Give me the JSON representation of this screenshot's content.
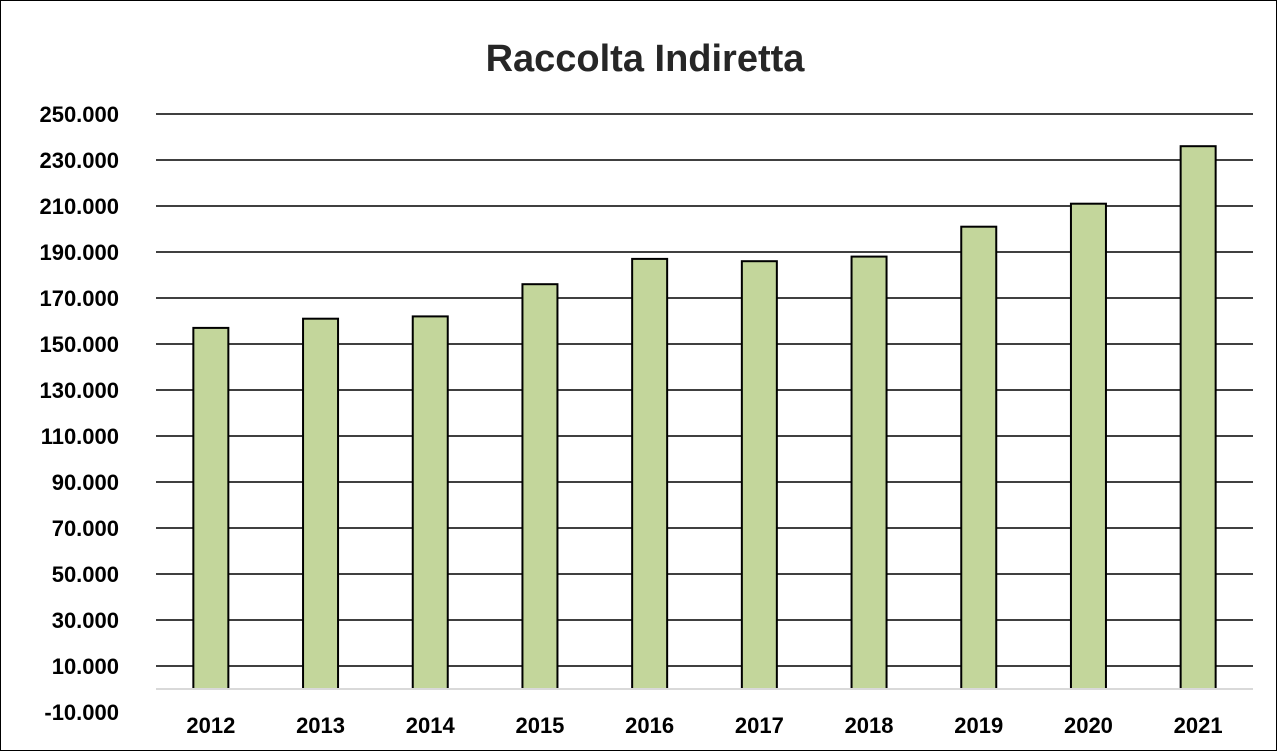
{
  "chart_data": {
    "type": "bar",
    "title": "Raccolta Indiretta",
    "xlabel": "",
    "ylabel": "",
    "categories": [
      "2012",
      "2013",
      "2014",
      "2015",
      "2016",
      "2017",
      "2018",
      "2019",
      "2020",
      "2021"
    ],
    "values": [
      157000,
      161000,
      162000,
      176000,
      187000,
      186000,
      188000,
      201000,
      211000,
      236000
    ],
    "ylim": [
      -10000,
      250000
    ],
    "yticks": [
      -10000,
      10000,
      30000,
      50000,
      70000,
      90000,
      110000,
      130000,
      150000,
      170000,
      190000,
      210000,
      230000,
      250000
    ],
    "ytick_labels": [
      "-10.000",
      "10.000",
      "30.000",
      "50.000",
      "70.000",
      "90.000",
      "110.000",
      "130.000",
      "150.000",
      "170.000",
      "190.000",
      "210.000",
      "230.000",
      "250.000"
    ],
    "grid": true,
    "legend": "none",
    "colors": {
      "bar_fill": "#c3d69b",
      "bar_stroke": "#000000",
      "gridline": "#000000",
      "zero_line": "#d9d9d9",
      "title": "#262626"
    }
  }
}
